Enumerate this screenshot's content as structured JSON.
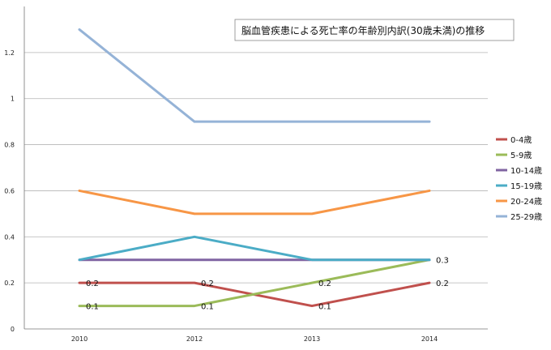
{
  "chart_data": {
    "type": "line",
    "title": "脳血管疾患による死亡率の年齢別内訳(30歳未満)の推移",
    "xlabel": "",
    "ylabel": "",
    "categories": [
      "2010",
      "2012",
      "2013",
      "2014"
    ],
    "ylim": [
      0,
      1.4
    ],
    "yticks": [
      "0",
      "0.2",
      "0.4",
      "0.6",
      "0.8",
      "1",
      "1.2"
    ],
    "grid": true,
    "legend_position": "right",
    "series": [
      {
        "name": "0-4歳",
        "color": "#c0504d",
        "values": [
          0.2,
          0.2,
          0.1,
          0.2
        ],
        "labels": [
          "0.2",
          "0.2",
          "0.1",
          "0.2"
        ]
      },
      {
        "name": "5-9歳",
        "color": "#9bbb59",
        "values": [
          0.1,
          0.1,
          0.2,
          0.3
        ],
        "labels": [
          "0.1",
          "0.1",
          "0.2",
          "0.3"
        ]
      },
      {
        "name": "10-14歳",
        "color": "#8064a2",
        "values": [
          0.3,
          0.3,
          0.3,
          0.3
        ],
        "labels": [
          "",
          "",
          "",
          ""
        ]
      },
      {
        "name": "15-19歳",
        "color": "#4bacc6",
        "values": [
          0.3,
          0.4,
          0.3,
          0.3
        ],
        "labels": [
          "",
          "",
          "",
          ""
        ]
      },
      {
        "name": "20-24歳",
        "color": "#f79646",
        "values": [
          0.6,
          0.5,
          0.5,
          0.6
        ],
        "labels": [
          "",
          "",
          "",
          ""
        ]
      },
      {
        "name": "25-29歳",
        "color": "#95b3d7",
        "values": [
          1.3,
          0.9,
          0.9,
          0.9
        ],
        "labels": [
          "",
          "",
          "",
          ""
        ]
      }
    ]
  }
}
